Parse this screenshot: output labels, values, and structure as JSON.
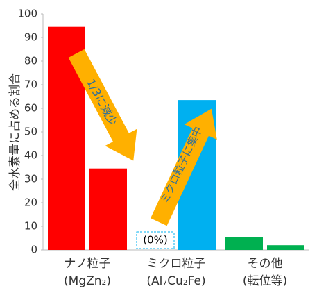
{
  "chart_data": {
    "type": "bar",
    "y_label": "全水素量に占める割合",
    "categories": [
      [
        "ナノ粒子",
        "(MgZn₂)"
      ],
      [
        "ミクロ粒子",
        "(Al₇Cu₂Fe)"
      ],
      [
        "その他",
        "(転位等)"
      ]
    ],
    "series": [
      {
        "colors": [
          "#ff0000",
          "#00b0f0",
          "#00b050"
        ],
        "values": [
          94.5,
          0,
          5.5
        ],
        "value_labels": [
          null,
          "(0%)",
          null
        ]
      },
      {
        "colors": [
          "#ff0000",
          "#00b0f0",
          "#00b050"
        ],
        "values": [
          34.5,
          63.5,
          2
        ]
      }
    ],
    "ylim": [
      0,
      100
    ],
    "yticks": [
      0,
      10,
      20,
      30,
      40,
      50,
      60,
      70,
      80,
      90,
      100
    ],
    "grid": false,
    "annotations": [
      "1/3に減少",
      "ミクロ粒子に集中"
    ]
  }
}
